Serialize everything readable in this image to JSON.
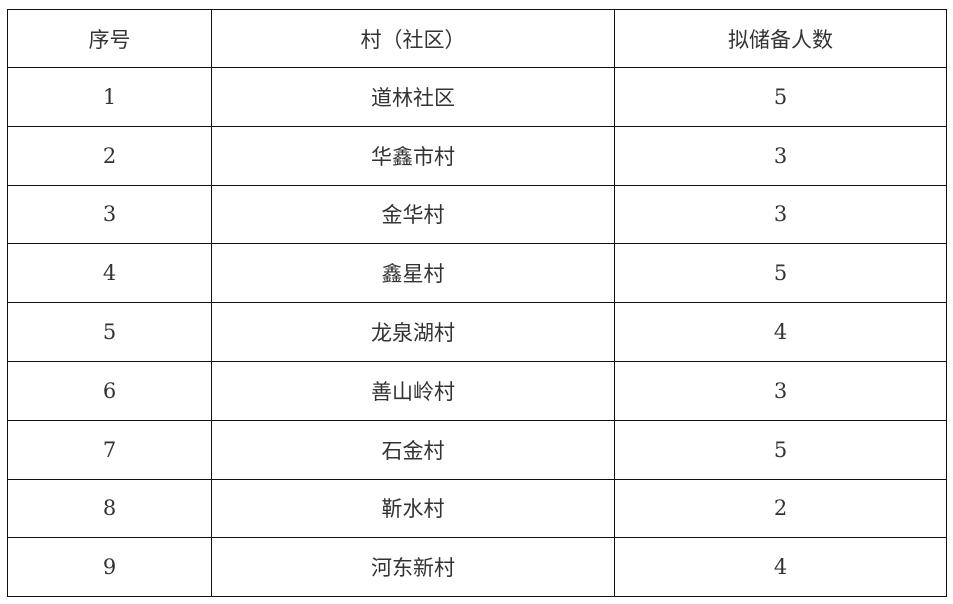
{
  "table": {
    "headers": [
      "序号",
      "村（社区）",
      "拟储备人数"
    ],
    "rows": [
      [
        "1",
        "道林社区",
        "5"
      ],
      [
        "2",
        "华鑫市村",
        "3"
      ],
      [
        "3",
        "金华村",
        "3"
      ],
      [
        "4",
        "鑫星村",
        "5"
      ],
      [
        "5",
        "龙泉湖村",
        "4"
      ],
      [
        "6",
        "善山岭村",
        "3"
      ],
      [
        "7",
        "石金村",
        "5"
      ],
      [
        "8",
        "靳水村",
        "2"
      ],
      [
        "9",
        "河东新村",
        "4"
      ]
    ]
  }
}
